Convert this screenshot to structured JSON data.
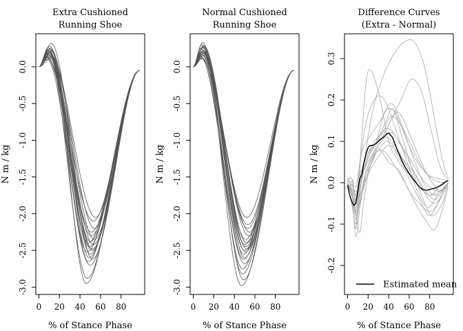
{
  "chart_data": [
    {
      "type": "line",
      "title": [
        "Extra Cushioned",
        "Running Shoe"
      ],
      "xlabel": "% of Stance Phase",
      "ylabel": "N m / kg",
      "xlim": [
        -3,
        103
      ],
      "ylim": [
        -3.1,
        0.45
      ],
      "xticks": [
        "0",
        "20",
        "40",
        "60",
        "80"
      ],
      "yticks": [
        "0.0",
        "-0.5",
        "-1.0",
        "-1.5",
        "-2.0",
        "-2.5",
        "-3.0"
      ],
      "grid": false,
      "curve_shape": {
        "x_start": 0,
        "x_end": 98,
        "y_end": -0.05
      },
      "series": [
        {
          "peak_x": 10,
          "peak_y": 0.2,
          "min_x": 49,
          "min_y": -2.45
        },
        {
          "peak_x": 8,
          "peak_y": 0.12,
          "min_x": 51,
          "min_y": -2.3
        },
        {
          "peak_x": 12,
          "peak_y": 0.32,
          "min_x": 52,
          "min_y": -2.62
        },
        {
          "peak_x": 9,
          "peak_y": 0.22,
          "min_x": 47,
          "min_y": -2.88
        },
        {
          "peak_x": 7,
          "peak_y": 0.15,
          "min_x": 53,
          "min_y": -2.1
        },
        {
          "peak_x": 11,
          "peak_y": 0.25,
          "min_x": 50,
          "min_y": -2.55
        },
        {
          "peak_x": 9,
          "peak_y": 0.18,
          "min_x": 48,
          "min_y": -2.4
        },
        {
          "peak_x": 10,
          "peak_y": 0.28,
          "min_x": 54,
          "min_y": -2.35
        },
        {
          "peak_x": 8,
          "peak_y": 0.1,
          "min_x": 50,
          "min_y": -2.7
        },
        {
          "peak_x": 12,
          "peak_y": 0.22,
          "min_x": 46,
          "min_y": -2.95
        },
        {
          "peak_x": 9,
          "peak_y": 0.16,
          "min_x": 52,
          "min_y": -2.5
        },
        {
          "peak_x": 10,
          "peak_y": 0.24,
          "min_x": 55,
          "min_y": -2.05
        },
        {
          "peak_x": 11,
          "peak_y": 0.19,
          "min_x": 49,
          "min_y": -2.6
        },
        {
          "peak_x": 8,
          "peak_y": 0.13,
          "min_x": 51,
          "min_y": -2.25
        },
        {
          "peak_x": 10,
          "peak_y": 0.21,
          "min_x": 53,
          "min_y": -2.42
        },
        {
          "peak_x": 9,
          "peak_y": 0.26,
          "min_x": 47,
          "min_y": -2.52
        },
        {
          "peak_x": 11,
          "peak_y": 0.17,
          "min_x": 50,
          "min_y": -2.38
        },
        {
          "peak_x": 10,
          "peak_y": 0.14,
          "min_x": 52,
          "min_y": -2.48
        },
        {
          "peak_x": 9,
          "peak_y": 0.23,
          "min_x": 48,
          "min_y": -2.65
        },
        {
          "peak_x": 12,
          "peak_y": 0.12,
          "min_x": 54,
          "min_y": -2.2
        }
      ]
    },
    {
      "type": "line",
      "title": [
        "Normal Cushioned",
        "Running Shoe"
      ],
      "xlabel": "% of Stance Phase",
      "ylabel": "N m / kg",
      "xlim": [
        -3,
        103
      ],
      "ylim": [
        -3.1,
        0.45
      ],
      "xticks": [
        "0",
        "20",
        "40",
        "60",
        "80"
      ],
      "yticks": [
        "0.0",
        "-0.5",
        "-1.0",
        "-1.5",
        "-2.0",
        "-2.5",
        "-3.0"
      ],
      "grid": false,
      "curve_shape": {
        "x_start": 0,
        "x_end": 98,
        "y_end": -0.05
      },
      "series": [
        {
          "peak_x": 9,
          "peak_y": 0.22,
          "min_x": 50,
          "min_y": -2.5
        },
        {
          "peak_x": 8,
          "peak_y": 0.3,
          "min_x": 51,
          "min_y": -2.35
        },
        {
          "peak_x": 10,
          "peak_y": 0.18,
          "min_x": 49,
          "min_y": -2.9
        },
        {
          "peak_x": 7,
          "peak_y": 0.25,
          "min_x": 52,
          "min_y": -2.05
        },
        {
          "peak_x": 9,
          "peak_y": 0.12,
          "min_x": 48,
          "min_y": -2.75
        },
        {
          "peak_x": 10,
          "peak_y": 0.28,
          "min_x": 50,
          "min_y": -2.6
        },
        {
          "peak_x": 8,
          "peak_y": 0.2,
          "min_x": 53,
          "min_y": -2.2
        },
        {
          "peak_x": 9,
          "peak_y": 0.33,
          "min_x": 47,
          "min_y": -2.98
        },
        {
          "peak_x": 11,
          "peak_y": 0.16,
          "min_x": 51,
          "min_y": -2.45
        },
        {
          "peak_x": 8,
          "peak_y": 0.24,
          "min_x": 54,
          "min_y": -2.3
        },
        {
          "peak_x": 10,
          "peak_y": 0.19,
          "min_x": 49,
          "min_y": -2.55
        },
        {
          "peak_x": 9,
          "peak_y": 0.27,
          "min_x": 52,
          "min_y": -2.4
        },
        {
          "peak_x": 7,
          "peak_y": 0.14,
          "min_x": 50,
          "min_y": -2.68
        },
        {
          "peak_x": 10,
          "peak_y": 0.22,
          "min_x": 48,
          "min_y": -2.82
        },
        {
          "peak_x": 8,
          "peak_y": 0.17,
          "min_x": 53,
          "min_y": -2.15
        },
        {
          "peak_x": 9,
          "peak_y": 0.26,
          "min_x": 51,
          "min_y": -2.52
        },
        {
          "peak_x": 11,
          "peak_y": 0.21,
          "min_x": 50,
          "min_y": -2.42
        },
        {
          "peak_x": 9,
          "peak_y": 0.15,
          "min_x": 49,
          "min_y": -2.62
        },
        {
          "peak_x": 10,
          "peak_y": 0.29,
          "min_x": 52,
          "min_y": -2.48
        },
        {
          "peak_x": 8,
          "peak_y": 0.11,
          "min_x": 55,
          "min_y": -2.25
        }
      ]
    },
    {
      "type": "line",
      "title": [
        "Difference Curves",
        "(Extra - Normal)"
      ],
      "xlabel": "% of Stance Phase",
      "ylabel": "N m / kg",
      "xlim": [
        -3,
        103
      ],
      "ylim": [
        -0.27,
        0.36
      ],
      "xticks": [
        "0",
        "20",
        "40",
        "60",
        "80"
      ],
      "yticks": [
        "0.3",
        "0.2",
        "0.1",
        "0.0",
        "-0.1",
        "-0.2"
      ],
      "grid": false,
      "legend": {
        "position": "bottom-right",
        "label": "Estimated mean"
      },
      "mean": {
        "x": [
          0,
          2,
          4,
          6,
          8,
          10,
          12,
          14,
          16,
          18,
          20,
          22,
          24,
          26,
          28,
          30,
          32,
          34,
          36,
          38,
          40,
          42,
          44,
          46,
          48,
          50,
          52,
          54,
          56,
          58,
          60,
          62,
          64,
          66,
          68,
          70,
          72,
          74,
          76,
          78,
          80,
          82,
          84,
          86,
          88,
          90,
          92,
          94,
          96,
          98
        ],
        "y": [
          -0.005,
          -0.03,
          -0.045,
          -0.055,
          -0.05,
          -0.02,
          0.01,
          0.02,
          0.05,
          0.07,
          0.085,
          0.09,
          0.09,
          0.092,
          0.095,
          0.1,
          0.105,
          0.108,
          0.112,
          0.118,
          0.12,
          0.115,
          0.108,
          0.095,
          0.082,
          0.07,
          0.058,
          0.048,
          0.038,
          0.03,
          0.022,
          0.015,
          0.008,
          0.002,
          -0.004,
          -0.01,
          -0.014,
          -0.017,
          -0.018,
          -0.018,
          -0.016,
          -0.015,
          -0.014,
          -0.012,
          -0.01,
          -0.007,
          -0.004,
          0.0,
          0.003,
          0.005
        ]
      },
      "series": [
        {
          "x": [
            0,
            5,
            8,
            10,
            14,
            20,
            30,
            40,
            50,
            60,
            70,
            80,
            90,
            98
          ],
          "y": [
            0.0,
            -0.04,
            -0.09,
            -0.05,
            0.12,
            0.27,
            0.22,
            0.1,
            0.05,
            0.02,
            -0.01,
            -0.03,
            -0.01,
            0.005
          ]
        },
        {
          "x": [
            0,
            5,
            8,
            12,
            18,
            25,
            35,
            45,
            55,
            65,
            75,
            85,
            92,
            98
          ],
          "y": [
            -0.01,
            -0.06,
            -0.11,
            -0.02,
            0.08,
            0.18,
            0.26,
            0.31,
            0.34,
            0.34,
            0.28,
            0.15,
            0.06,
            0.01
          ]
        },
        {
          "x": [
            0,
            4,
            8,
            12,
            18,
            24,
            32,
            42,
            52,
            62,
            72,
            82,
            90,
            98
          ],
          "y": [
            0.01,
            -0.02,
            -0.13,
            -0.06,
            0.02,
            0.06,
            0.1,
            0.15,
            0.2,
            0.25,
            0.22,
            0.12,
            0.04,
            0.005
          ]
        },
        {
          "x": [
            0,
            5,
            8,
            12,
            16,
            22,
            30,
            40,
            50,
            60,
            70,
            80,
            90,
            98
          ],
          "y": [
            -0.005,
            -0.03,
            -0.07,
            -0.12,
            -0.04,
            0.04,
            0.08,
            0.1,
            0.06,
            0.01,
            -0.04,
            -0.08,
            -0.04,
            0.0
          ]
        },
        {
          "x": [
            0,
            4,
            8,
            12,
            16,
            22,
            30,
            38,
            48,
            58,
            68,
            78,
            88,
            98
          ],
          "y": [
            0.005,
            0.01,
            -0.03,
            0.04,
            0.12,
            0.18,
            0.21,
            0.19,
            0.12,
            0.05,
            -0.02,
            -0.06,
            -0.03,
            0.0
          ]
        },
        {
          "x": [
            0,
            4,
            8,
            12,
            18,
            26,
            34,
            42,
            50,
            60,
            70,
            80,
            90,
            98
          ],
          "y": [
            0.0,
            -0.02,
            -0.05,
            -0.01,
            0.05,
            0.09,
            0.11,
            0.15,
            0.17,
            0.12,
            0.06,
            0.01,
            -0.02,
            0.0
          ]
        },
        {
          "x": [
            0,
            5,
            9,
            14,
            20,
            28,
            36,
            44,
            52,
            62,
            72,
            82,
            92,
            98
          ],
          "y": [
            0.005,
            -0.01,
            -0.02,
            0.03,
            0.07,
            0.1,
            0.14,
            0.18,
            0.12,
            0.04,
            -0.03,
            -0.08,
            -0.05,
            0.0
          ]
        },
        {
          "x": [
            0,
            4,
            8,
            12,
            18,
            24,
            30,
            38,
            46,
            56,
            66,
            76,
            86,
            98
          ],
          "y": [
            -0.01,
            -0.05,
            -0.1,
            -0.04,
            0.02,
            0.05,
            0.08,
            0.07,
            0.04,
            0.0,
            -0.05,
            -0.09,
            -0.11,
            -0.01
          ]
        },
        {
          "x": [
            0,
            5,
            10,
            15,
            22,
            30,
            40,
            50,
            60,
            70,
            80,
            88,
            94,
            98
          ],
          "y": [
            0.0,
            -0.02,
            -0.06,
            -0.02,
            0.04,
            0.08,
            0.05,
            0.03,
            -0.02,
            -0.05,
            -0.07,
            -0.05,
            -0.02,
            0.0
          ]
        },
        {
          "x": [
            0,
            4,
            8,
            12,
            18,
            26,
            34,
            42,
            52,
            62,
            72,
            82,
            92,
            98
          ],
          "y": [
            0.005,
            0.0,
            -0.04,
            0.02,
            0.06,
            0.1,
            0.12,
            0.16,
            0.14,
            0.09,
            0.04,
            0.01,
            0.0,
            0.005
          ]
        },
        {
          "x": [
            0,
            5,
            9,
            13,
            18,
            25,
            33,
            41,
            50,
            60,
            70,
            80,
            90,
            98
          ],
          "y": [
            -0.005,
            -0.04,
            -0.08,
            -0.03,
            0.03,
            0.07,
            0.12,
            0.13,
            0.1,
            0.06,
            0.02,
            -0.01,
            -0.02,
            0.0
          ]
        },
        {
          "x": [
            0,
            4,
            8,
            12,
            16,
            24,
            32,
            40,
            48,
            58,
            68,
            78,
            88,
            98
          ],
          "y": [
            0.01,
            0.01,
            -0.01,
            0.05,
            0.09,
            0.12,
            0.15,
            0.18,
            0.16,
            0.1,
            0.05,
            0.02,
            0.01,
            0.005
          ]
        },
        {
          "x": [
            0,
            5,
            8,
            12,
            18,
            24,
            32,
            40,
            50,
            60,
            70,
            80,
            90,
            98
          ],
          "y": [
            0.0,
            -0.03,
            -0.07,
            -0.03,
            0.01,
            0.04,
            0.07,
            0.09,
            0.07,
            0.03,
            -0.01,
            -0.03,
            -0.02,
            0.0
          ]
        },
        {
          "x": [
            0,
            4,
            8,
            12,
            18,
            26,
            34,
            44,
            54,
            64,
            74,
            84,
            92,
            98
          ],
          "y": [
            -0.005,
            -0.02,
            -0.05,
            0.0,
            0.05,
            0.09,
            0.11,
            0.12,
            0.08,
            0.03,
            -0.02,
            -0.05,
            -0.03,
            0.0
          ]
        },
        {
          "x": [
            0,
            5,
            10,
            14,
            20,
            28,
            36,
            44,
            54,
            64,
            74,
            84,
            92,
            98
          ],
          "y": [
            0.005,
            -0.01,
            -0.04,
            0.01,
            0.06,
            0.1,
            0.17,
            0.19,
            0.13,
            0.06,
            0.0,
            -0.03,
            -0.02,
            0.0
          ]
        },
        {
          "x": [
            0,
            4,
            8,
            12,
            16,
            22,
            30,
            38,
            46,
            56,
            66,
            76,
            86,
            98
          ],
          "y": [
            0.0,
            -0.03,
            -0.06,
            -0.02,
            0.03,
            0.06,
            0.09,
            0.11,
            0.09,
            0.05,
            0.02,
            -0.02,
            -0.04,
            0.0
          ]
        }
      ]
    }
  ]
}
